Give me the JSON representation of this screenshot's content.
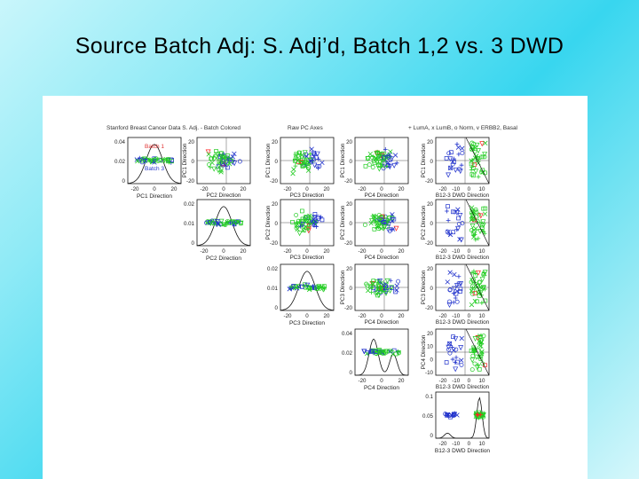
{
  "slide_title": "Source Batch Adj:  S. Adj’d, Batch 1,2 vs. 3 DWD",
  "figure": {
    "header_left": "Stanford Breast Cancer Data  S. Adj. - Batch Colored",
    "header_mid": "Raw PC Axes",
    "header_right": "+ LumA, x LumB, o Norm, v ERBB2, Basal"
  },
  "colors": {
    "batch12": "#e03030",
    "batch3": "#2233cc",
    "green": "#22cc22",
    "red": "#ff2222"
  },
  "chart_data": {
    "type": "scatter",
    "title": "Stanford Breast Cancer Data  S. Adj. - Batch Colored",
    "subtitle": "Raw PC Axes",
    "legend": [
      "Batch 1",
      "Batch 3"
    ],
    "symbol_legend": "+ LumA, x LumB, o Norm, v ERBB2, Basal",
    "variables": [
      "PC1 Direction",
      "PC2 Direction",
      "PC3 Direction",
      "PC4 Direction",
      "B12-3 DWD Direction"
    ],
    "diagonal": [
      {
        "xlabel": "PC1 Direction",
        "ylim": [
          0,
          0.04
        ],
        "yticks": [
          "0.04",
          "0.02",
          "0"
        ],
        "xticks": [
          "-20",
          "0",
          "20"
        ]
      },
      {
        "xlabel": "PC2 Direction",
        "ylim": [
          0,
          0.02
        ],
        "yticks": [
          "0.02",
          "0.01",
          "0"
        ],
        "xticks": [
          "-20",
          "0",
          "20"
        ]
      },
      {
        "xlabel": "PC3 Direction",
        "ylim": [
          0,
          0.02
        ],
        "yticks": [
          "0.02",
          "0.01",
          "0"
        ],
        "xticks": [
          "-20",
          "0",
          "20"
        ]
      },
      {
        "xlabel": "PC4 Direction",
        "ylim": [
          0,
          0.04
        ],
        "yticks": [
          "0.04",
          "0.02",
          "0"
        ],
        "xticks": [
          "-20",
          "0",
          "20"
        ]
      },
      {
        "xlabel": "B12-3 DWD Direction",
        "ylim": [
          0,
          0.1
        ],
        "yticks": [
          "0.1",
          "0.05",
          "0"
        ],
        "xticks": [
          "-20",
          "-10",
          "0",
          "10"
        ]
      }
    ],
    "offdiag_xticks": {
      "PC": [
        "-20",
        "0",
        "20"
      ],
      "DWD": [
        "-20",
        "-10",
        "0",
        "10"
      ]
    },
    "offdiag_yticks": {
      "row1": [
        "20",
        "0",
        "-20"
      ],
      "row2": [
        "20",
        "0",
        "-20"
      ],
      "row3": [
        "20",
        "0",
        "-20"
      ],
      "row4": [
        "20",
        "10",
        "0",
        "-10"
      ]
    }
  }
}
